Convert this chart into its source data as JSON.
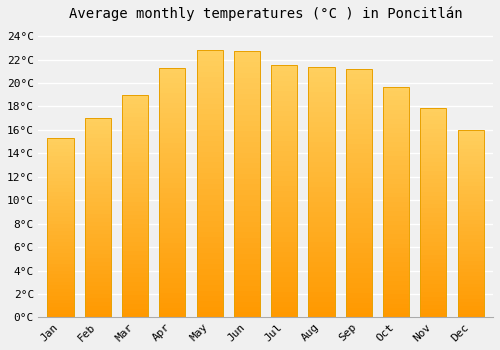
{
  "months": [
    "Jan",
    "Feb",
    "Mar",
    "Apr",
    "May",
    "Jun",
    "Jul",
    "Aug",
    "Sep",
    "Oct",
    "Nov",
    "Dec"
  ],
  "values": [
    15.3,
    17.0,
    19.0,
    21.3,
    22.8,
    22.7,
    21.5,
    21.4,
    21.2,
    19.7,
    17.9,
    16.0
  ],
  "bar_color_top": "#FFB700",
  "bar_color_bottom": "#FFCC55",
  "bar_edge_color": "#E8A000",
  "title": "Average monthly temperatures (°C ) in Poncitlán",
  "ylabel_ticks": [
    "0°C",
    "2°C",
    "4°C",
    "6°C",
    "8°C",
    "10°C",
    "12°C",
    "14°C",
    "16°C",
    "18°C",
    "20°C",
    "22°C",
    "24°C"
  ],
  "ytick_vals": [
    0,
    2,
    4,
    6,
    8,
    10,
    12,
    14,
    16,
    18,
    20,
    22,
    24
  ],
  "ylim": [
    0,
    24.8
  ],
  "background_color": "#f0f0f0",
  "plot_bg_color": "#f0f0f0",
  "grid_color": "#ffffff",
  "title_fontsize": 10,
  "tick_fontsize": 8,
  "font_family": "monospace",
  "bar_width": 0.7
}
